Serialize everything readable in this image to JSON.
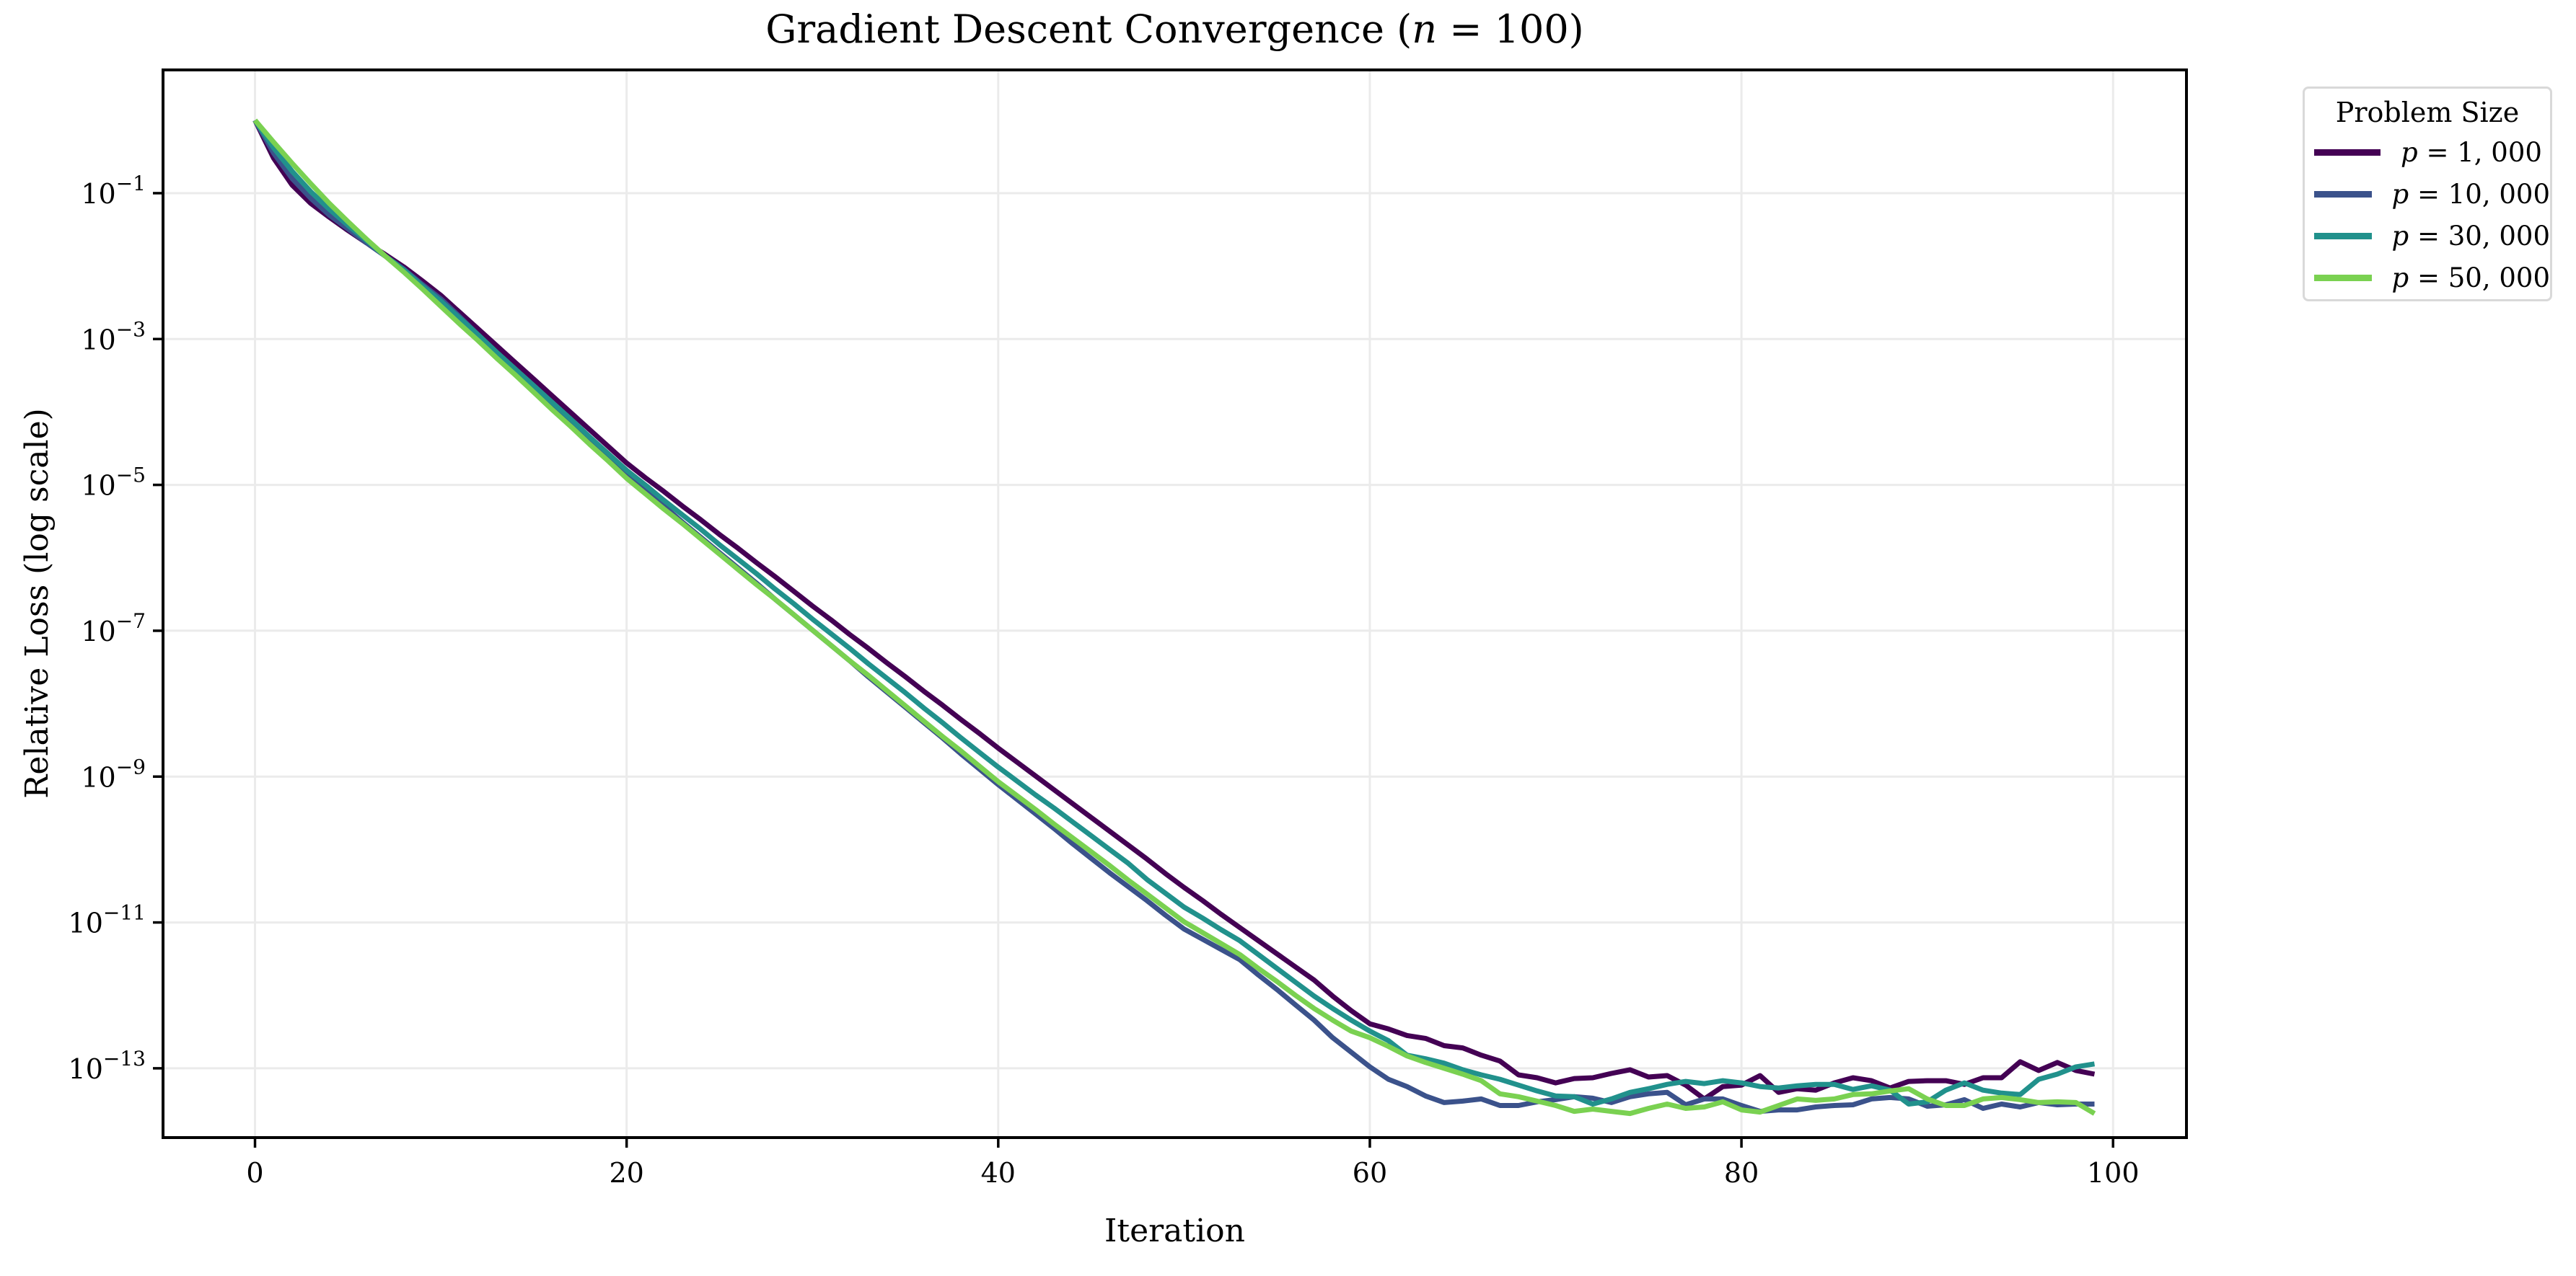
{
  "chart_data": {
    "type": "line",
    "title": "Gradient Descent Convergence (n = 100)",
    "xlabel": "Iteration",
    "ylabel": "Relative Loss (log scale)",
    "yscale": "log",
    "xlim": [
      -4.95,
      103.95
    ],
    "ylim_log10": [
      -13.95,
      0.69
    ],
    "xticks": [
      0,
      20,
      40,
      60,
      80,
      100
    ],
    "yticks_log10": [
      -1,
      -3,
      -5,
      -7,
      -9,
      -11,
      -13
    ],
    "ytick_labels": [
      "10^-1",
      "10^-3",
      "10^-5",
      "10^-7",
      "10^-9",
      "10^-11",
      "10^-13"
    ],
    "grid": true,
    "legend": {
      "title": "Problem Size",
      "position": "outside upper right"
    },
    "x": [
      0,
      1,
      2,
      3,
      4,
      5,
      6,
      7,
      8,
      9,
      10,
      11,
      12,
      13,
      14,
      15,
      16,
      17,
      18,
      19,
      20,
      21,
      22,
      23,
      24,
      25,
      26,
      27,
      28,
      29,
      30,
      31,
      32,
      33,
      34,
      35,
      36,
      37,
      38,
      39,
      40,
      41,
      42,
      43,
      44,
      45,
      46,
      47,
      48,
      49,
      50,
      51,
      52,
      53,
      54,
      55,
      56,
      57,
      58,
      59,
      60,
      61,
      62,
      63,
      64,
      65,
      66,
      67,
      68,
      69,
      70,
      71,
      72,
      73,
      74,
      75,
      76,
      77,
      78,
      79,
      80,
      81,
      82,
      83,
      84,
      85,
      86,
      87,
      88,
      89,
      90,
      91,
      92,
      93,
      94,
      95,
      96,
      97,
      98,
      99
    ],
    "series": [
      {
        "name": "p = 1,000",
        "label_var": "p",
        "label_value": "1, 000",
        "color": "#440154",
        "values_log10": [
          0,
          -0.52,
          -0.89,
          -1.14,
          -1.33,
          -1.51,
          -1.68,
          -1.84,
          -2.01,
          -2.2,
          -2.4,
          -2.63,
          -2.86,
          -3.09,
          -3.32,
          -3.55,
          -3.78,
          -4.01,
          -4.24,
          -4.47,
          -4.7,
          -4.9,
          -5.09,
          -5.29,
          -5.48,
          -5.68,
          -5.87,
          -6.07,
          -6.26,
          -6.46,
          -6.66,
          -6.85,
          -7.05,
          -7.24,
          -7.44,
          -7.63,
          -7.83,
          -8.02,
          -8.22,
          -8.41,
          -8.61,
          -8.8,
          -8.99,
          -9.18,
          -9.37,
          -9.56,
          -9.75,
          -9.94,
          -10.13,
          -10.33,
          -10.52,
          -10.7,
          -10.89,
          -11.07,
          -11.25,
          -11.43,
          -11.61,
          -11.79,
          -12.01,
          -12.21,
          -12.39,
          -12.46,
          -12.55,
          -12.59,
          -12.69,
          -12.72,
          -12.82,
          -12.9,
          -13.09,
          -13.13,
          -13.2,
          -13.14,
          -13.13,
          -13.07,
          -13.02,
          -13.12,
          -13.1,
          -13.23,
          -13.42,
          -13.25,
          -13.23,
          -13.1,
          -13.33,
          -13.28,
          -13.3,
          -13.2,
          -13.13,
          -13.17,
          -13.27,
          -13.18,
          -13.17,
          -13.17,
          -13.22,
          -13.13,
          -13.13,
          -12.91,
          -13.03,
          -12.92,
          -13.03,
          -13.08
        ]
      },
      {
        "name": "p = 10,000",
        "label_var": "p",
        "label_value": "10, 000",
        "color": "#3b528b",
        "values_log10": [
          0,
          -0.45,
          -0.8,
          -1.07,
          -1.3,
          -1.49,
          -1.68,
          -1.86,
          -2.04,
          -2.25,
          -2.45,
          -2.69,
          -2.94,
          -3.18,
          -3.42,
          -3.66,
          -3.9,
          -4.14,
          -4.39,
          -4.63,
          -4.87,
          -5.08,
          -5.29,
          -5.51,
          -5.72,
          -5.93,
          -6.14,
          -6.35,
          -6.57,
          -6.78,
          -6.99,
          -7.2,
          -7.41,
          -7.63,
          -7.84,
          -8.05,
          -8.26,
          -8.47,
          -8.69,
          -8.9,
          -9.11,
          -9.31,
          -9.51,
          -9.71,
          -9.92,
          -10.12,
          -10.32,
          -10.51,
          -10.7,
          -10.9,
          -11.09,
          -11.23,
          -11.37,
          -11.51,
          -11.72,
          -11.92,
          -12.13,
          -12.34,
          -12.58,
          -12.78,
          -12.98,
          -13.15,
          -13.25,
          -13.38,
          -13.47,
          -13.45,
          -13.42,
          -13.51,
          -13.51,
          -13.46,
          -13.43,
          -13.39,
          -13.41,
          -13.47,
          -13.39,
          -13.35,
          -13.33,
          -13.5,
          -13.42,
          -13.42,
          -13.51,
          -13.59,
          -13.57,
          -13.57,
          -13.53,
          -13.51,
          -13.5,
          -13.42,
          -13.4,
          -13.42,
          -13.52,
          -13.5,
          -13.43,
          -13.55,
          -13.49,
          -13.53,
          -13.47,
          -13.5,
          -13.49,
          -13.49
        ]
      },
      {
        "name": "p = 30,000",
        "label_var": "p",
        "label_value": "30, 000",
        "color": "#21918c",
        "values_log10": [
          0,
          -0.38,
          -0.7,
          -0.98,
          -1.22,
          -1.44,
          -1.65,
          -1.86,
          -2.05,
          -2.27,
          -2.48,
          -2.71,
          -2.94,
          -3.18,
          -3.41,
          -3.64,
          -3.87,
          -4.1,
          -4.34,
          -4.57,
          -4.8,
          -5.0,
          -5.21,
          -5.41,
          -5.61,
          -5.82,
          -6.02,
          -6.22,
          -6.43,
          -6.63,
          -6.84,
          -7.04,
          -7.24,
          -7.45,
          -7.65,
          -7.85,
          -8.06,
          -8.26,
          -8.47,
          -8.67,
          -8.87,
          -9.06,
          -9.25,
          -9.43,
          -9.62,
          -9.81,
          -10.0,
          -10.19,
          -10.41,
          -10.6,
          -10.79,
          -10.94,
          -11.1,
          -11.25,
          -11.44,
          -11.63,
          -11.82,
          -12.01,
          -12.18,
          -12.34,
          -12.49,
          -12.62,
          -12.82,
          -12.87,
          -12.93,
          -13.02,
          -13.09,
          -13.15,
          -13.23,
          -13.31,
          -13.38,
          -13.39,
          -13.49,
          -13.42,
          -13.33,
          -13.28,
          -13.22,
          -13.18,
          -13.21,
          -13.17,
          -13.2,
          -13.25,
          -13.27,
          -13.24,
          -13.22,
          -13.22,
          -13.29,
          -13.24,
          -13.3,
          -13.49,
          -13.46,
          -13.3,
          -13.2,
          -13.3,
          -13.34,
          -13.36,
          -13.15,
          -13.08,
          -12.98,
          -12.94
        ]
      },
      {
        "name": "p = 50,000",
        "label_var": "p",
        "label_value": "50, 000",
        "color": "#7ad151",
        "values_log10": [
          0,
          -0.3,
          -0.59,
          -0.87,
          -1.14,
          -1.39,
          -1.63,
          -1.86,
          -2.08,
          -2.31,
          -2.55,
          -2.79,
          -3.02,
          -3.26,
          -3.49,
          -3.73,
          -3.97,
          -4.2,
          -4.44,
          -4.67,
          -4.91,
          -5.12,
          -5.33,
          -5.53,
          -5.74,
          -5.95,
          -6.16,
          -6.37,
          -6.57,
          -6.78,
          -6.99,
          -7.2,
          -7.41,
          -7.61,
          -7.82,
          -8.03,
          -8.24,
          -8.45,
          -8.65,
          -8.86,
          -9.07,
          -9.26,
          -9.45,
          -9.65,
          -9.84,
          -10.03,
          -10.22,
          -10.42,
          -10.61,
          -10.8,
          -10.99,
          -11.14,
          -11.29,
          -11.44,
          -11.63,
          -11.81,
          -12.0,
          -12.18,
          -12.34,
          -12.49,
          -12.58,
          -12.7,
          -12.83,
          -12.92,
          -13.0,
          -13.08,
          -13.17,
          -13.35,
          -13.39,
          -13.45,
          -13.51,
          -13.59,
          -13.56,
          -13.59,
          -13.62,
          -13.55,
          -13.49,
          -13.55,
          -13.53,
          -13.46,
          -13.57,
          -13.6,
          -13.51,
          -13.42,
          -13.44,
          -13.42,
          -13.36,
          -13.35,
          -13.31,
          -13.28,
          -13.42,
          -13.51,
          -13.51,
          -13.42,
          -13.4,
          -13.43,
          -13.47,
          -13.46,
          -13.47,
          -13.62
        ]
      }
    ]
  },
  "title": {
    "main": "Gradient Descent Convergence (",
    "var": "n",
    "rest": " = 100)"
  },
  "axes": {
    "xlabel": "Iteration",
    "ylabel": "Relative Loss (log scale)"
  },
  "legend": {
    "title": "Problem Size"
  },
  "style": {
    "grid_color": "#ebebeb",
    "axis_color": "#000000"
  }
}
